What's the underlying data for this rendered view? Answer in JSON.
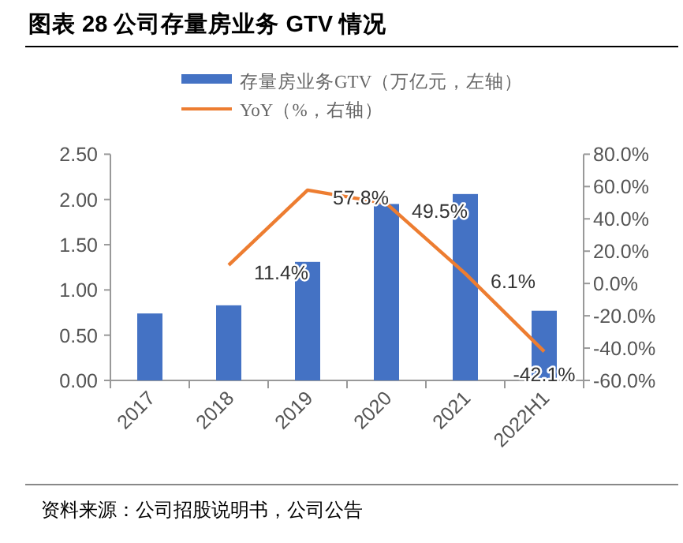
{
  "chart_data": {
    "type": "bar",
    "title": "图表 28  公司存量房业务 GTV 情况",
    "categories": [
      "2017",
      "2018",
      "2019",
      "2020",
      "2021",
      "2022H1"
    ],
    "series": [
      {
        "name": "存量房业务GTV（万亿元，左轴）",
        "color": "#4472c4",
        "values": [
          0.74,
          0.83,
          1.31,
          1.95,
          2.06,
          0.77
        ]
      },
      {
        "name": "YoY（%，右轴）",
        "type": "line",
        "axis": "y2",
        "color": "#ed7d31",
        "values": [
          null,
          11.4,
          57.8,
          49.5,
          6.1,
          -42.1
        ],
        "value_labels": [
          null,
          "11.4%",
          "57.8%",
          "49.5%",
          "6.1%",
          "-42.1%"
        ]
      }
    ],
    "ylim": [
      0,
      2.5
    ],
    "yticks": [
      {
        "value": 0,
        "label": "0.00"
      },
      {
        "value": 0.5,
        "label": "0.50"
      },
      {
        "value": 1,
        "label": "1.00"
      },
      {
        "value": 1.5,
        "label": "1.50"
      },
      {
        "value": 2,
        "label": "2.00"
      },
      {
        "value": 2.5,
        "label": "2.50"
      }
    ],
    "y2lim": [
      -60,
      80
    ],
    "y2ticks": [
      {
        "value": -60,
        "label": "-60.0%"
      },
      {
        "value": -40,
        "label": "-40.0%"
      },
      {
        "value": -20,
        "label": "-20.0%"
      },
      {
        "value": 0,
        "label": "0.0%"
      },
      {
        "value": 20,
        "label": "20.0%"
      },
      {
        "value": 40,
        "label": "40.0%"
      },
      {
        "value": 60,
        "label": "60.0%"
      },
      {
        "value": 80,
        "label": "80.0%"
      }
    ],
    "legend": "top",
    "annotations": [
      "资料来源：公司招股说明书，公司公告"
    ]
  }
}
